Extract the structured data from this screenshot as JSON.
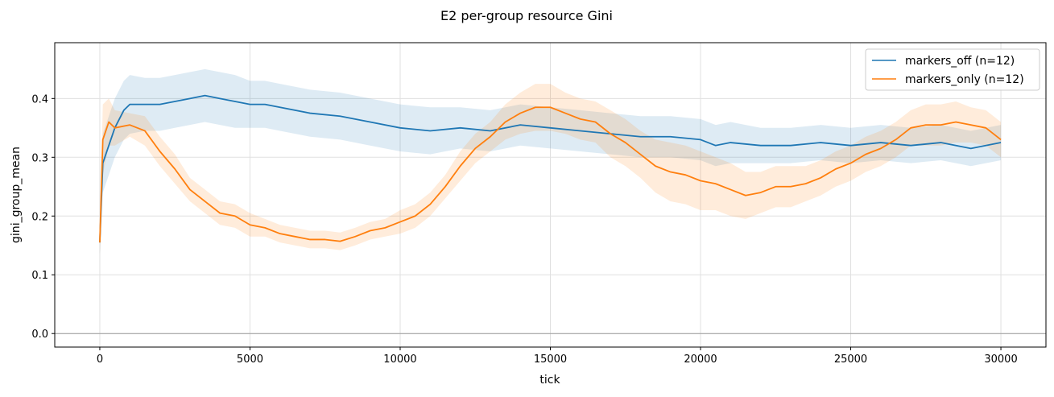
{
  "chart_data": {
    "type": "line",
    "title": "E2 per-group resource Gini",
    "xlabel": "tick",
    "ylabel": "gini_group_mean",
    "xlim": [
      -1500,
      31500
    ],
    "ylim": [
      -0.023,
      0.495
    ],
    "xticks": [
      0,
      5000,
      10000,
      15000,
      20000,
      25000,
      30000
    ],
    "yticks": [
      0.0,
      0.1,
      0.2,
      0.3,
      0.4
    ],
    "ytick_labels": [
      "0.0",
      "0.1",
      "0.2",
      "0.3",
      "0.4"
    ],
    "grid": true,
    "hline": 0.0,
    "legend_position": "top-right",
    "series": [
      {
        "name": "markers_off (n=12)",
        "color": "#1f77b4",
        "x": [
          0,
          100,
          300,
          500,
          800,
          1000,
          1500,
          2000,
          2500,
          3000,
          3500,
          4000,
          4500,
          5000,
          5500,
          6000,
          7000,
          8000,
          9000,
          10000,
          11000,
          12000,
          13000,
          14000,
          15000,
          16000,
          17000,
          18000,
          19000,
          20000,
          20500,
          21000,
          22000,
          23000,
          24000,
          25000,
          26000,
          27000,
          28000,
          29000,
          30000
        ],
        "y": [
          0.155,
          0.29,
          0.32,
          0.35,
          0.38,
          0.39,
          0.39,
          0.39,
          0.395,
          0.4,
          0.405,
          0.4,
          0.395,
          0.39,
          0.39,
          0.385,
          0.375,
          0.37,
          0.36,
          0.35,
          0.345,
          0.35,
          0.345,
          0.355,
          0.35,
          0.345,
          0.34,
          0.335,
          0.335,
          0.33,
          0.32,
          0.325,
          0.32,
          0.32,
          0.325,
          0.32,
          0.325,
          0.32,
          0.325,
          0.315,
          0.325
        ],
        "band": [
          0.02,
          0.05,
          0.05,
          0.05,
          0.05,
          0.05,
          0.045,
          0.045,
          0.045,
          0.045,
          0.045,
          0.045,
          0.045,
          0.04,
          0.04,
          0.04,
          0.04,
          0.04,
          0.04,
          0.04,
          0.04,
          0.035,
          0.035,
          0.035,
          0.035,
          0.035,
          0.035,
          0.035,
          0.035,
          0.035,
          0.035,
          0.035,
          0.03,
          0.03,
          0.03,
          0.03,
          0.03,
          0.03,
          0.03,
          0.03,
          0.03
        ]
      },
      {
        "name": "markers_only (n=12)",
        "color": "#ff7f0e",
        "x": [
          0,
          100,
          300,
          500,
          1000,
          1500,
          2000,
          2500,
          3000,
          3500,
          4000,
          4500,
          5000,
          5500,
          6000,
          6500,
          7000,
          7500,
          8000,
          8500,
          9000,
          9500,
          10000,
          10500,
          11000,
          11500,
          12000,
          12500,
          13000,
          13500,
          14000,
          14500,
          15000,
          15500,
          16000,
          16500,
          17000,
          17500,
          18000,
          18500,
          19000,
          19500,
          20000,
          20500,
          21000,
          21500,
          22000,
          22500,
          23000,
          23500,
          24000,
          24500,
          25000,
          25500,
          26000,
          26500,
          27000,
          27500,
          28000,
          28500,
          29000,
          29500,
          30000
        ],
        "y": [
          0.155,
          0.33,
          0.36,
          0.35,
          0.355,
          0.345,
          0.31,
          0.28,
          0.245,
          0.225,
          0.205,
          0.2,
          0.185,
          0.18,
          0.17,
          0.165,
          0.16,
          0.16,
          0.157,
          0.165,
          0.175,
          0.18,
          0.19,
          0.2,
          0.22,
          0.25,
          0.285,
          0.315,
          0.335,
          0.36,
          0.375,
          0.385,
          0.385,
          0.375,
          0.365,
          0.36,
          0.34,
          0.325,
          0.305,
          0.285,
          0.275,
          0.27,
          0.26,
          0.255,
          0.245,
          0.235,
          0.24,
          0.25,
          0.25,
          0.255,
          0.265,
          0.28,
          0.29,
          0.305,
          0.315,
          0.33,
          0.35,
          0.355,
          0.355,
          0.36,
          0.355,
          0.35,
          0.33
        ],
        "band": [
          0.02,
          0.06,
          0.04,
          0.03,
          0.02,
          0.025,
          0.025,
          0.025,
          0.02,
          0.02,
          0.02,
          0.02,
          0.02,
          0.015,
          0.015,
          0.015,
          0.015,
          0.015,
          0.015,
          0.015,
          0.015,
          0.015,
          0.02,
          0.02,
          0.02,
          0.02,
          0.025,
          0.025,
          0.025,
          0.03,
          0.035,
          0.04,
          0.04,
          0.035,
          0.035,
          0.035,
          0.04,
          0.04,
          0.04,
          0.045,
          0.05,
          0.05,
          0.05,
          0.045,
          0.045,
          0.04,
          0.035,
          0.035,
          0.035,
          0.03,
          0.03,
          0.03,
          0.03,
          0.03,
          0.03,
          0.03,
          0.03,
          0.035,
          0.035,
          0.035,
          0.03,
          0.03,
          0.03
        ]
      }
    ]
  }
}
